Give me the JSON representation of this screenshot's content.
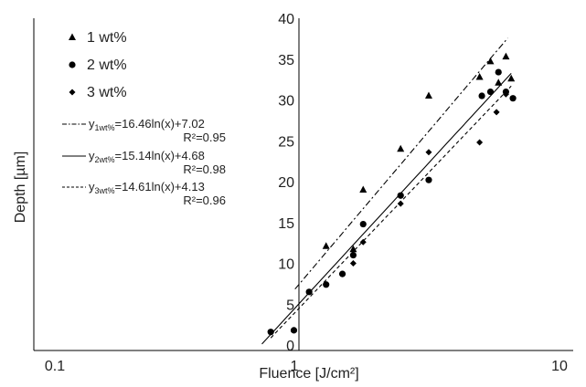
{
  "chart_data": {
    "type": "scatter",
    "xlabel": "Fluence [J/cm²]",
    "ylabel": "Depth [µm]",
    "xscale": "log",
    "xlim": [
      0.1,
      10
    ],
    "ylim": [
      0,
      40
    ],
    "xticks": [
      {
        "value": 0.1,
        "label": "0.1"
      },
      {
        "value": 1,
        "label": "1"
      },
      {
        "value": 10,
        "label": "10"
      }
    ],
    "yticks": [
      0,
      5,
      10,
      15,
      20,
      25,
      30,
      35,
      40
    ],
    "grid": false,
    "legend_position": "top-left",
    "series": [
      {
        "name": "1 wt%",
        "marker": "triangle",
        "color": "#000000",
        "points": [
          [
            1.3,
            12.1
          ],
          [
            1.65,
            11.7
          ],
          [
            1.8,
            19.0
          ],
          [
            2.5,
            24.0
          ],
          [
            3.2,
            30.5
          ],
          [
            5.0,
            32.8
          ],
          [
            5.5,
            34.7
          ],
          [
            5.9,
            32.1
          ],
          [
            6.3,
            35.3
          ],
          [
            6.6,
            32.6
          ]
        ]
      },
      {
        "name": "2 wt%",
        "marker": "circle",
        "color": "#000000",
        "points": [
          [
            0.8,
            1.6
          ],
          [
            0.98,
            1.8
          ],
          [
            1.12,
            6.5
          ],
          [
            1.3,
            7.4
          ],
          [
            1.5,
            8.7
          ],
          [
            1.65,
            11.0
          ],
          [
            1.8,
            14.8
          ],
          [
            2.5,
            18.3
          ],
          [
            3.2,
            20.2
          ],
          [
            5.1,
            30.5
          ],
          [
            5.5,
            31.0
          ],
          [
            5.9,
            33.4
          ],
          [
            6.3,
            31.0
          ],
          [
            6.7,
            30.2
          ]
        ]
      },
      {
        "name": "3 wt%",
        "marker": "diamond",
        "color": "#000000",
        "points": [
          [
            1.65,
            10.0
          ],
          [
            1.8,
            12.6
          ],
          [
            2.5,
            17.3
          ],
          [
            3.2,
            23.6
          ],
          [
            5.0,
            24.8
          ],
          [
            5.8,
            28.5
          ],
          [
            6.3,
            30.7
          ]
        ]
      }
    ],
    "fits": [
      {
        "prefix": "y",
        "subscript": "1wt%",
        "equation": "=16.46ln(x)+7.02",
        "r2": "R²=0.95",
        "a": 16.46,
        "b": 7.02,
        "dash": "dashdot",
        "x_range": [
          0.99,
          6.4
        ]
      },
      {
        "prefix": "y",
        "subscript": "2wt%",
        "equation": "=15.14ln(x)+4.68",
        "r2": "R²=0.98",
        "a": 15.14,
        "b": 4.68,
        "dash": "solid",
        "x_range": [
          0.74,
          6.6
        ]
      },
      {
        "prefix": "y",
        "subscript": "3wt%",
        "equation": "=14.61ln(x)+4.13",
        "r2": "R²=0.96",
        "a": 14.61,
        "b": 4.13,
        "dash": "dashed",
        "x_range": [
          0.8,
          6.6
        ]
      }
    ]
  }
}
